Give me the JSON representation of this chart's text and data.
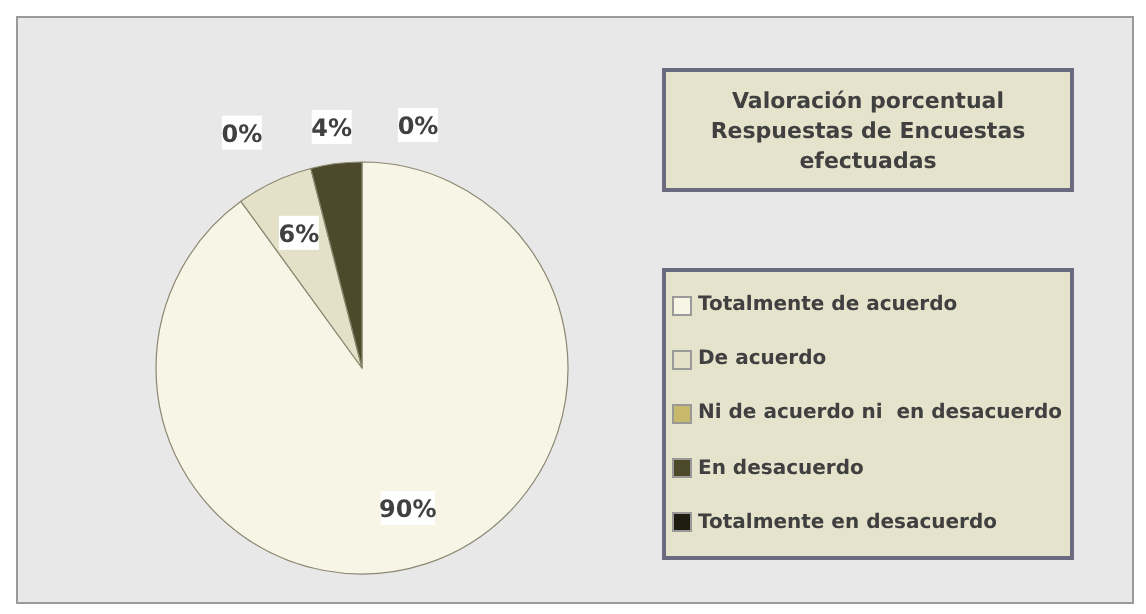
{
  "chart_data": {
    "type": "pie",
    "title": "Valoración porcentual Respuestas de Encuestas efectuadas",
    "categories": [
      "Totalmente de acuerdo",
      "De acuerdo",
      "Ni de acuerdo ni  en desacuerdo",
      "En desacuerdo",
      "Totalmente en desacuerdo"
    ],
    "values": [
      90,
      6,
      0,
      4,
      0
    ],
    "colors": [
      "#f7f5e6",
      "#e4e1c8",
      "#c8b86a",
      "#4d4a2c",
      "#1e1c10"
    ],
    "value_labels": [
      "90%",
      "6%",
      "0%",
      "4%",
      "0%"
    ],
    "legend": "right"
  }
}
